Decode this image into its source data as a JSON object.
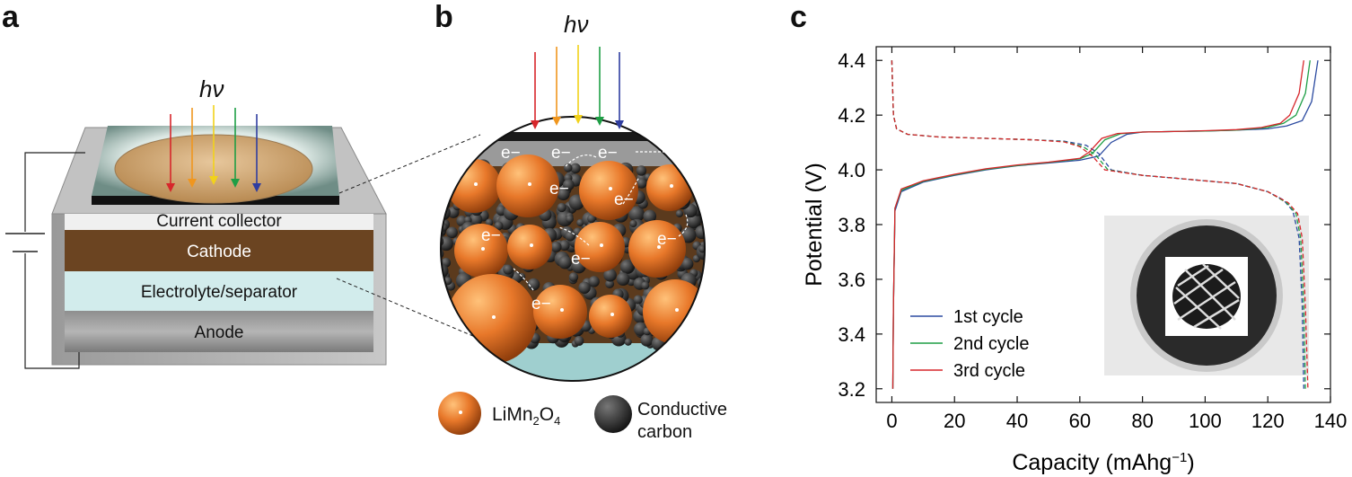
{
  "panels": {
    "a": "a",
    "b": "b",
    "c": "c"
  },
  "panel_a": {
    "light_symbol": "hν",
    "layers": {
      "current_collector": "Current collector",
      "cathode": "Cathode",
      "electrolyte": "Electrolyte/separator",
      "anode": "Anode"
    }
  },
  "panel_b": {
    "light_symbol": "hν",
    "electron_label": "e−",
    "legend": {
      "limn_prefix": "LiMn",
      "limn_sub1": "2",
      "limn_mid": "O",
      "limn_sub2": "4",
      "carbon_line1": "Conductive",
      "carbon_line2": "carbon"
    }
  },
  "colors": {
    "ray_red": "#d7262b",
    "ray_orange": "#f0961e",
    "ray_yellow": "#f2d21a",
    "ray_green": "#1e9e45",
    "ray_blue": "#2f3da0",
    "cathode": "#6b4421",
    "electrolyte": "#d2ecec",
    "cycle1": "#2b4aa0",
    "cycle2": "#1e9e45",
    "cycle3": "#d7262b"
  },
  "chart_data": {
    "type": "line",
    "title": "",
    "xlabel": "Capacity (mAhg",
    "xlabel_sup": "−1",
    "xlabel_end": ")",
    "ylabel": "Potential (V)",
    "xlim": [
      -5,
      140
    ],
    "ylim": [
      3.15,
      4.45
    ],
    "xticks": [
      0,
      20,
      40,
      60,
      80,
      100,
      120,
      140
    ],
    "yticks": [
      3.2,
      3.4,
      3.6,
      3.8,
      4.0,
      4.2,
      4.4
    ],
    "legend_location": "lower-left",
    "series": [
      {
        "name": "1st cycle",
        "color": "#2b4aa0",
        "charge": [
          [
            0.3,
            3.2
          ],
          [
            0.5,
            3.5
          ],
          [
            1,
            3.85
          ],
          [
            3,
            3.92
          ],
          [
            10,
            3.955
          ],
          [
            20,
            3.98
          ],
          [
            30,
            4.0
          ],
          [
            40,
            4.015
          ],
          [
            50,
            4.025
          ],
          [
            60,
            4.035
          ],
          [
            66,
            4.05
          ],
          [
            70,
            4.1
          ],
          [
            75,
            4.13
          ],
          [
            80,
            4.138
          ],
          [
            90,
            4.14
          ],
          [
            100,
            4.142
          ],
          [
            110,
            4.145
          ],
          [
            120,
            4.15
          ],
          [
            126,
            4.16
          ],
          [
            131,
            4.18
          ],
          [
            134,
            4.25
          ],
          [
            136,
            4.4
          ]
        ],
        "discharge": [
          [
            0,
            4.4
          ],
          [
            0.5,
            4.2
          ],
          [
            1.5,
            4.15
          ],
          [
            5,
            4.13
          ],
          [
            15,
            4.12
          ],
          [
            30,
            4.115
          ],
          [
            45,
            4.11
          ],
          [
            55,
            4.105
          ],
          [
            62,
            4.09
          ],
          [
            66,
            4.06
          ],
          [
            70,
            4.0
          ],
          [
            80,
            3.98
          ],
          [
            90,
            3.97
          ],
          [
            100,
            3.96
          ],
          [
            110,
            3.95
          ],
          [
            120,
            3.92
          ],
          [
            125,
            3.89
          ],
          [
            128,
            3.85
          ],
          [
            130,
            3.75
          ],
          [
            131,
            3.5
          ],
          [
            131.5,
            3.2
          ]
        ]
      },
      {
        "name": "2nd cycle",
        "color": "#1e9e45",
        "charge": [
          [
            0.3,
            3.2
          ],
          [
            0.5,
            3.5
          ],
          [
            1,
            3.86
          ],
          [
            3,
            3.925
          ],
          [
            10,
            3.958
          ],
          [
            20,
            3.982
          ],
          [
            30,
            4.002
          ],
          [
            40,
            4.016
          ],
          [
            50,
            4.027
          ],
          [
            60,
            4.04
          ],
          [
            64,
            4.06
          ],
          [
            68,
            4.11
          ],
          [
            73,
            4.132
          ],
          [
            80,
            4.138
          ],
          [
            90,
            4.14
          ],
          [
            100,
            4.142
          ],
          [
            110,
            4.145
          ],
          [
            120,
            4.155
          ],
          [
            125,
            4.17
          ],
          [
            129,
            4.2
          ],
          [
            132,
            4.28
          ],
          [
            133.5,
            4.4
          ]
        ],
        "discharge": [
          [
            0,
            4.4
          ],
          [
            0.5,
            4.2
          ],
          [
            1.5,
            4.15
          ],
          [
            5,
            4.13
          ],
          [
            15,
            4.12
          ],
          [
            30,
            4.115
          ],
          [
            45,
            4.11
          ],
          [
            55,
            4.103
          ],
          [
            61,
            4.085
          ],
          [
            65,
            4.055
          ],
          [
            69,
            4.0
          ],
          [
            80,
            3.98
          ],
          [
            90,
            3.97
          ],
          [
            100,
            3.96
          ],
          [
            110,
            3.95
          ],
          [
            120,
            3.92
          ],
          [
            126,
            3.88
          ],
          [
            129,
            3.84
          ],
          [
            130.5,
            3.75
          ],
          [
            131.5,
            3.5
          ],
          [
            132,
            3.2
          ]
        ]
      },
      {
        "name": "3rd cycle",
        "color": "#d7262b",
        "charge": [
          [
            0.3,
            3.2
          ],
          [
            0.5,
            3.5
          ],
          [
            1,
            3.86
          ],
          [
            3,
            3.93
          ],
          [
            10,
            3.96
          ],
          [
            20,
            3.984
          ],
          [
            30,
            4.004
          ],
          [
            40,
            4.018
          ],
          [
            50,
            4.028
          ],
          [
            60,
            4.042
          ],
          [
            63,
            4.065
          ],
          [
            67,
            4.115
          ],
          [
            72,
            4.133
          ],
          [
            80,
            4.138
          ],
          [
            90,
            4.14
          ],
          [
            100,
            4.143
          ],
          [
            110,
            4.147
          ],
          [
            118,
            4.155
          ],
          [
            124,
            4.17
          ],
          [
            127,
            4.2
          ],
          [
            130,
            4.28
          ],
          [
            131.5,
            4.4
          ]
        ],
        "discharge": [
          [
            0,
            4.4
          ],
          [
            0.5,
            4.2
          ],
          [
            1.5,
            4.15
          ],
          [
            5,
            4.13
          ],
          [
            15,
            4.12
          ],
          [
            30,
            4.115
          ],
          [
            45,
            4.11
          ],
          [
            55,
            4.102
          ],
          [
            60,
            4.085
          ],
          [
            64,
            4.05
          ],
          [
            68,
            4.0
          ],
          [
            80,
            3.98
          ],
          [
            90,
            3.97
          ],
          [
            100,
            3.96
          ],
          [
            110,
            3.95
          ],
          [
            120,
            3.92
          ],
          [
            126.5,
            3.88
          ],
          [
            129.5,
            3.84
          ],
          [
            131,
            3.75
          ],
          [
            132,
            3.5
          ],
          [
            132.8,
            3.2
          ]
        ]
      }
    ]
  }
}
